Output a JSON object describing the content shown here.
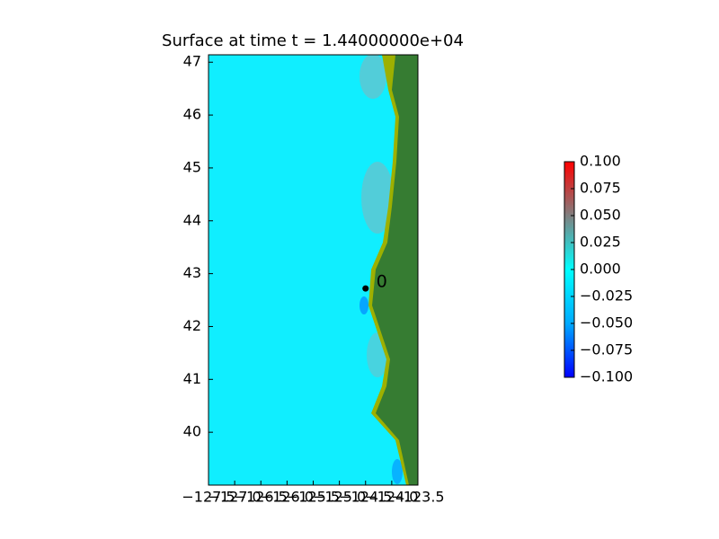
{
  "chart_data": {
    "type": "map",
    "title": "Surface at time t = 1.44000000e+04",
    "xlim": [
      -127.5,
      -123.5
    ],
    "xticks": [
      {
        "value": -127.5,
        "label": "−127.5"
      },
      {
        "value": -127.0,
        "label": "−127.0"
      },
      {
        "value": -126.5,
        "label": "−126.5"
      },
      {
        "value": -126.0,
        "label": "−126.0"
      },
      {
        "value": -125.5,
        "label": "−125.5"
      },
      {
        "value": -125.0,
        "label": "−125.0"
      },
      {
        "value": -124.5,
        "label": "−124.5"
      },
      {
        "value": -124.0,
        "label": "−124.0"
      },
      {
        "value": -123.5,
        "label": "−123.5"
      }
    ],
    "ylim": [
      39.0,
      47.14
    ],
    "yticks": [
      40,
      41,
      42,
      43,
      44,
      45,
      46,
      47
    ],
    "gauges": [
      {
        "label": "0",
        "x": -124.5,
        "y": 42.72
      }
    ],
    "colorbar": {
      "ylim": [
        -0.1,
        0.1
      ],
      "colors": [
        "#0000ff",
        "#00aaff",
        "#00ffff",
        "#808080",
        "#ff0000"
      ],
      "ticks": [
        {
          "value": -0.1,
          "label": "−0.100"
        },
        {
          "value": -0.075,
          "label": "−0.075"
        },
        {
          "value": -0.05,
          "label": "−0.050"
        },
        {
          "value": -0.025,
          "label": "−0.025"
        },
        {
          "value": 0.0,
          "label": "0.000"
        },
        {
          "value": 0.025,
          "label": "0.025"
        },
        {
          "value": 0.05,
          "label": "0.050"
        },
        {
          "value": 0.075,
          "label": "0.075"
        },
        {
          "value": 0.1,
          "label": "0.100"
        }
      ]
    }
  }
}
